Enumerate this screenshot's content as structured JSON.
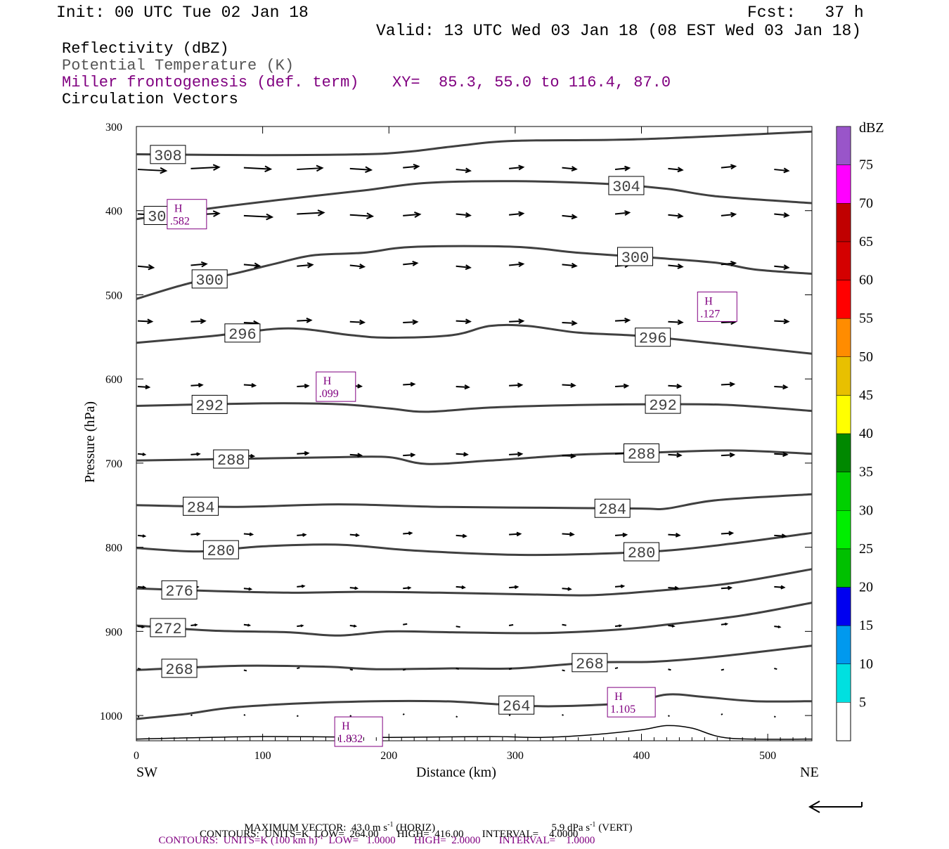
{
  "header": {
    "init": "Init: 00 UTC Tue 02 Jan 18",
    "fcst": "Fcst:   37 h",
    "valid": "Valid: 13 UTC Wed 03 Jan 18 (08 EST Wed 03 Jan 18)"
  },
  "fields": {
    "reflectivity": "Reflectivity (dBZ)",
    "theta": "Potential Temperature (K)",
    "frontogenesis": "Miller frontogenesis (def. term)",
    "xy": "XY=  85.3, 55.0 to 116.4, 87.0",
    "vectors": "Circulation Vectors"
  },
  "colors": {
    "theta_line": "#404040",
    "frontogenesis": "#800080",
    "vectors": "#000000"
  },
  "chart_data": {
    "type": "line",
    "xlabel": "Distance (km)",
    "ylabel": "Pressure (hPa)",
    "xlim": [
      0,
      535
    ],
    "ylim": [
      1030,
      300
    ],
    "x_ticks": [
      0,
      100,
      200,
      300,
      400,
      500
    ],
    "y_ticks": [
      300,
      400,
      500,
      600,
      700,
      800,
      900,
      1000
    ],
    "left_end_label": "SW",
    "right_end_label": "NE",
    "theta_contours": [
      {
        "level": "308",
        "pts": [
          [
            0,
            333
          ],
          [
            100,
            334
          ],
          [
            180,
            333
          ],
          [
            215,
            330
          ],
          [
            255,
            323
          ],
          [
            300,
            317
          ],
          [
            400,
            315
          ],
          [
            535,
            306
          ]
        ]
      },
      {
        "level": "304",
        "pts": [
          [
            0,
            410
          ],
          [
            60,
            397
          ],
          [
            120,
            386
          ],
          [
            180,
            376
          ],
          [
            230,
            367
          ],
          [
            300,
            365
          ],
          [
            370,
            368
          ],
          [
            420,
            374
          ],
          [
            460,
            383
          ],
          [
            535,
            391
          ]
        ]
      },
      {
        "level": "300",
        "pts": [
          [
            0,
            505
          ],
          [
            40,
            487
          ],
          [
            80,
            474
          ],
          [
            110,
            463
          ],
          [
            140,
            453
          ],
          [
            180,
            450
          ],
          [
            220,
            443
          ],
          [
            300,
            443
          ],
          [
            350,
            450
          ],
          [
            410,
            456
          ],
          [
            460,
            462
          ],
          [
            490,
            470
          ],
          [
            535,
            475
          ]
        ]
      },
      {
        "level": "296",
        "pts": [
          [
            0,
            557
          ],
          [
            60,
            549
          ],
          [
            120,
            540
          ],
          [
            170,
            548
          ],
          [
            200,
            551
          ],
          [
            250,
            548
          ],
          [
            280,
            537
          ],
          [
            310,
            537
          ],
          [
            350,
            545
          ],
          [
            400,
            549
          ],
          [
            460,
            558
          ],
          [
            535,
            570
          ]
        ]
      },
      {
        "level": "292",
        "pts": [
          [
            0,
            632
          ],
          [
            100,
            629
          ],
          [
            160,
            630
          ],
          [
            200,
            635
          ],
          [
            230,
            639
          ],
          [
            280,
            634
          ],
          [
            350,
            631
          ],
          [
            420,
            630
          ],
          [
            470,
            631
          ],
          [
            535,
            638
          ]
        ]
      },
      {
        "level": "288",
        "pts": [
          [
            0,
            697
          ],
          [
            80,
            695
          ],
          [
            160,
            693
          ],
          [
            200,
            693
          ],
          [
            230,
            701
          ],
          [
            280,
            697
          ],
          [
            350,
            690
          ],
          [
            400,
            688
          ],
          [
            470,
            685
          ],
          [
            535,
            689
          ]
        ]
      },
      {
        "level": "284",
        "pts": [
          [
            0,
            750
          ],
          [
            80,
            752
          ],
          [
            160,
            749
          ],
          [
            240,
            752
          ],
          [
            320,
            753
          ],
          [
            400,
            754
          ],
          [
            420,
            754
          ],
          [
            460,
            744
          ],
          [
            535,
            737
          ]
        ]
      },
      {
        "level": "280",
        "pts": [
          [
            0,
            801
          ],
          [
            50,
            805
          ],
          [
            100,
            799
          ],
          [
            160,
            797
          ],
          [
            220,
            804
          ],
          [
            300,
            809
          ],
          [
            360,
            808
          ],
          [
            420,
            804
          ],
          [
            470,
            796
          ],
          [
            535,
            783
          ]
        ]
      },
      {
        "level": "276",
        "pts": [
          [
            0,
            849
          ],
          [
            60,
            852
          ],
          [
            120,
            854
          ],
          [
            180,
            853
          ],
          [
            240,
            854
          ],
          [
            310,
            856
          ],
          [
            360,
            857
          ],
          [
            410,
            852
          ],
          [
            470,
            843
          ],
          [
            535,
            826
          ]
        ]
      },
      {
        "level": "272",
        "pts": [
          [
            0,
            893
          ],
          [
            60,
            899
          ],
          [
            120,
            901
          ],
          [
            160,
            905
          ],
          [
            200,
            900
          ],
          [
            250,
            901
          ],
          [
            320,
            902
          ],
          [
            380,
            898
          ],
          [
            420,
            892
          ],
          [
            480,
            881
          ],
          [
            535,
            866
          ]
        ]
      },
      {
        "level": "268",
        "pts": [
          [
            0,
            946
          ],
          [
            80,
            941
          ],
          [
            150,
            942
          ],
          [
            190,
            945
          ],
          [
            250,
            944
          ],
          [
            300,
            944
          ],
          [
            360,
            937
          ],
          [
            410,
            936
          ],
          [
            460,
            930
          ],
          [
            535,
            917
          ]
        ]
      },
      {
        "level": "264",
        "pts": [
          [
            0,
            1004
          ],
          [
            40,
            998
          ],
          [
            80,
            990
          ],
          [
            160,
            984
          ],
          [
            240,
            983
          ],
          [
            290,
            987
          ],
          [
            330,
            989
          ],
          [
            390,
            985
          ],
          [
            420,
            975
          ],
          [
            450,
            978
          ],
          [
            490,
            983
          ],
          [
            535,
            983
          ]
        ]
      }
    ],
    "terrain": [
      [
        0,
        1028
      ],
      [
        100,
        1025
      ],
      [
        200,
        1026
      ],
      [
        280,
        1025
      ],
      [
        320,
        1026
      ],
      [
        360,
        1023
      ],
      [
        400,
        1017
      ],
      [
        420,
        1012
      ],
      [
        440,
        1015
      ],
      [
        470,
        1027
      ],
      [
        535,
        1028
      ]
    ],
    "frontogenesis_maxima": [
      {
        "label": "H",
        "value": ".582"
      },
      {
        "label": "H",
        "value": ".127"
      },
      {
        "label": "H",
        "value": ".099"
      },
      {
        "label": "H",
        "value": "1.105"
      },
      {
        "label": "H",
        "value": "1.832"
      }
    ],
    "colorbar": {
      "title": "dBZ",
      "levels": [
        "5",
        "10",
        "15",
        "20",
        "25",
        "30",
        "35",
        "40",
        "45",
        "50",
        "55",
        "60",
        "65",
        "70",
        "75"
      ],
      "colors": [
        "#00e0e0",
        "#0099ee",
        "#0000f0",
        "#00c000",
        "#00ee00",
        "#00d000",
        "#008800",
        "#ffff00",
        "#e8c000",
        "#ff8c00",
        "#ff0000",
        "#d40000",
        "#c00000",
        "#ff00ff",
        "#9955c9"
      ]
    }
  },
  "footer": {
    "max_vector_label": "MAXIMUM VECTOR:",
    "horiz": "43.0 m s",
    "horiz_exp": "-1",
    "horiz_tag": "(HORIZ)",
    "vert": "5.9 dPa s",
    "vert_exp": "-1",
    "vert_tag": "(VERT)",
    "contours1_a": "CONTOURS:  UNITS=K (100 km h)",
    "contours1_exp": "-1",
    "contours1_b": "LOW=   1.0000       HIGH=  2.0000       INTERVAL=    1.0000",
    "contours2": "CONTOURS:  UNITS=K  LOW=  264.00       HIGH=  416.00       INTERVAL=    4.0000"
  }
}
